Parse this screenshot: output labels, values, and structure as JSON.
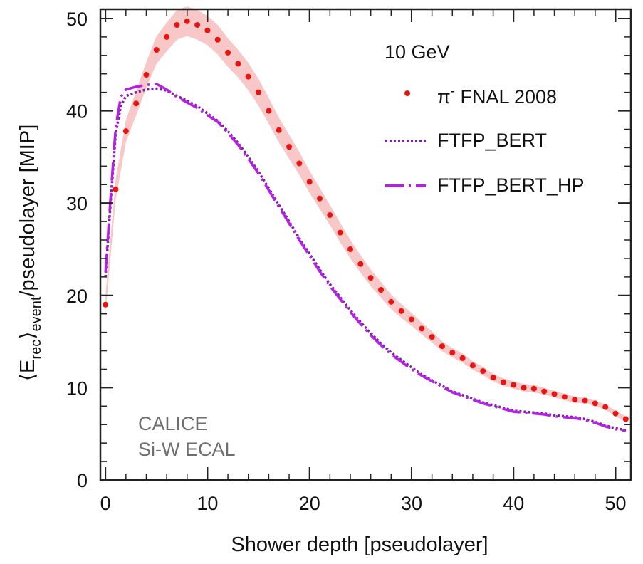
{
  "chart_data": {
    "type": "line",
    "title": "",
    "xlabel": "Shower depth [pseudolayer]",
    "ylabel": {
      "open": "⟨E",
      "sub1": "rec",
      "close": "⟩",
      "sub2": "event",
      "rest": "/pseudolayer [MIP]"
    },
    "xlim": [
      -0.5,
      51.5
    ],
    "ylim": [
      0,
      51
    ],
    "xticks": [
      0,
      10,
      20,
      30,
      40,
      50
    ],
    "yticks": [
      0,
      10,
      20,
      30,
      40,
      50
    ],
    "xtick_labels": [
      "0",
      "10",
      "20",
      "30",
      "40",
      "50"
    ],
    "ytick_labels": [
      "0",
      "10",
      "20",
      "30",
      "40",
      "50"
    ],
    "annotations": {
      "energy": "10 GeV",
      "experiment_line1": "CALICE",
      "experiment_line2": "Si-W ECAL"
    },
    "legend": {
      "placement": "top-right",
      "entries": [
        {
          "symbol": "π",
          "sup": "-",
          "text": " FNAL 2008"
        },
        {
          "text": "FTFP_BERT"
        },
        {
          "text": "FTFP_BERT_HP"
        }
      ]
    },
    "colors": {
      "data": "#e8140f",
      "band": "#f6b4b4",
      "ftfp_bert": "#7a1fa2",
      "ftfp_bert_hp": "#b51fe6",
      "axis": "#222222"
    },
    "series": [
      {
        "name": "π- FNAL 2008",
        "style": "points",
        "x": [
          0,
          1,
          2,
          3,
          4,
          5,
          6,
          7,
          8,
          9,
          10,
          11,
          12,
          13,
          14,
          15,
          16,
          17,
          18,
          19,
          20,
          21,
          22,
          23,
          24,
          25,
          26,
          27,
          28,
          29,
          30,
          31,
          32,
          33,
          34,
          35,
          36,
          37,
          38,
          39,
          40,
          41,
          42,
          43,
          44,
          45,
          46,
          47,
          48,
          49,
          50,
          51
        ],
        "values": [
          19.0,
          31.5,
          37.8,
          40.8,
          43.9,
          46.6,
          48.0,
          49.3,
          49.7,
          49.3,
          48.7,
          47.7,
          46.3,
          45.1,
          43.7,
          42.0,
          40.0,
          37.9,
          36.1,
          34.3,
          32.3,
          30.5,
          28.7,
          26.8,
          25.0,
          23.4,
          21.9,
          20.6,
          19.3,
          18.3,
          17.4,
          16.4,
          15.5,
          14.5,
          13.8,
          13.2,
          12.4,
          11.8,
          11.1,
          10.6,
          10.3,
          10.0,
          9.9,
          9.6,
          9.3,
          9.0,
          8.7,
          8.6,
          8.3,
          7.9,
          7.2,
          6.6
        ],
        "band_halfwidth": [
          1.0,
          1.1,
          1.2,
          1.3,
          1.4,
          1.5,
          1.55,
          1.6,
          1.6,
          1.6,
          1.6,
          1.6,
          1.55,
          1.5,
          1.5,
          1.45,
          1.4,
          1.35,
          1.3,
          1.25,
          1.2,
          1.15,
          1.1,
          1.05,
          1.0,
          0.95,
          0.9,
          0.85,
          0.8,
          0.75,
          0.7,
          0.65,
          0.6,
          0.55,
          0.5,
          0.5,
          0.45,
          0.45,
          0.4,
          0.4,
          0.4,
          0.4,
          0.4,
          0.35,
          0.35,
          0.35,
          0.35,
          0.3,
          0.3,
          0.3,
          0.3,
          0.3
        ]
      },
      {
        "name": "FTFP_BERT",
        "style": "dotted",
        "x": [
          0,
          0.5,
          1,
          1.5,
          2,
          3,
          4,
          5,
          6,
          7,
          8,
          9,
          10,
          11,
          12,
          13,
          14,
          15,
          16,
          17,
          18,
          19,
          20,
          21,
          22,
          23,
          24,
          25,
          26,
          27,
          28,
          29,
          30,
          31,
          32,
          33,
          34,
          35,
          36,
          37,
          38,
          39,
          40,
          41,
          42,
          43,
          44,
          45,
          46,
          47,
          48,
          49,
          50,
          51
        ],
        "values": [
          22.0,
          30.0,
          37.5,
          40.5,
          41.6,
          42.0,
          42.3,
          42.4,
          42.2,
          41.6,
          41.1,
          40.5,
          39.7,
          38.9,
          37.8,
          36.5,
          35.0,
          33.4,
          31.6,
          29.8,
          28.0,
          26.2,
          24.5,
          22.8,
          21.2,
          19.8,
          18.4,
          17.1,
          15.9,
          14.8,
          13.8,
          13.0,
          12.2,
          11.4,
          10.8,
          10.2,
          9.6,
          9.2,
          8.8,
          8.4,
          8.1,
          7.8,
          7.5,
          7.4,
          7.3,
          7.2,
          7.0,
          6.9,
          6.8,
          6.6,
          6.3,
          5.9,
          5.6,
          5.4
        ]
      },
      {
        "name": "FTFP_BERT_HP",
        "style": "longdash",
        "x": [
          0,
          0.5,
          1,
          1.5,
          2,
          3,
          4,
          5,
          6,
          7,
          8,
          9,
          10,
          11,
          12,
          13,
          14,
          15,
          16,
          17,
          18,
          19,
          20,
          21,
          22,
          23,
          24,
          25,
          26,
          27,
          28,
          29,
          30,
          31,
          32,
          33,
          34,
          35,
          36,
          37,
          38,
          39,
          40,
          41,
          42,
          43,
          44,
          45,
          46,
          47,
          48,
          49,
          50,
          51
        ],
        "values": [
          22.5,
          30.6,
          38.2,
          41.5,
          42.3,
          42.6,
          42.8,
          42.9,
          42.3,
          41.5,
          40.9,
          40.3,
          39.5,
          38.8,
          37.6,
          36.3,
          34.8,
          33.2,
          31.4,
          29.6,
          27.8,
          26.0,
          24.3,
          22.6,
          21.0,
          19.6,
          18.2,
          16.9,
          15.7,
          14.6,
          13.6,
          12.8,
          12.0,
          11.3,
          10.7,
          10.1,
          9.5,
          9.1,
          8.7,
          8.3,
          8.0,
          7.7,
          7.4,
          7.3,
          7.2,
          7.1,
          6.9,
          6.8,
          6.7,
          6.5,
          6.2,
          5.8,
          5.5,
          5.3
        ]
      }
    ]
  }
}
